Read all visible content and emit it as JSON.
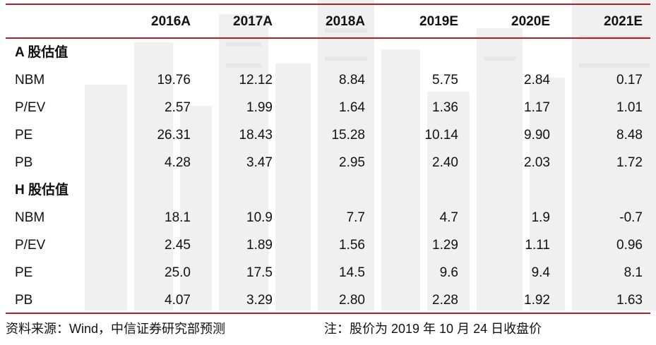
{
  "columns": [
    "2016A",
    "2017A",
    "2018A",
    "2019E",
    "2020E",
    "2021E"
  ],
  "sections": [
    {
      "title": "A 股估值",
      "rows": [
        {
          "label": "NBM",
          "values": [
            "19.76",
            "12.12",
            "8.84",
            "5.75",
            "2.84",
            "0.17"
          ]
        },
        {
          "label": "P/EV",
          "values": [
            "2.57",
            "1.99",
            "1.64",
            "1.36",
            "1.17",
            "1.01"
          ]
        },
        {
          "label": "PE",
          "values": [
            "26.31",
            "18.43",
            "15.28",
            "10.14",
            "9.90",
            "8.48"
          ]
        },
        {
          "label": "PB",
          "values": [
            "4.28",
            "3.47",
            "2.95",
            "2.40",
            "2.03",
            "1.72"
          ]
        }
      ]
    },
    {
      "title": "H 股估值",
      "rows": [
        {
          "label": "NBM",
          "values": [
            "18.1",
            "10.9",
            "7.7",
            "4.7",
            "1.9",
            "-0.7"
          ]
        },
        {
          "label": "P/EV",
          "values": [
            "2.45",
            "1.89",
            "1.56",
            "1.29",
            "1.11",
            "0.96"
          ]
        },
        {
          "label": "PE",
          "values": [
            "25.0",
            "17.5",
            "14.5",
            "9.6",
            "9.4",
            "8.1"
          ]
        },
        {
          "label": "PB",
          "values": [
            "4.07",
            "3.29",
            "2.80",
            "2.28",
            "1.92",
            "1.63"
          ]
        }
      ]
    }
  ],
  "footer": {
    "source": "资料来源：Wind，中信证券研究部预测",
    "note": "注：股价为 2019 年 10 月 24 日收盘价"
  },
  "colors": {
    "rule": "#b41e23",
    "text": "#111111",
    "watermark": "#ececec"
  }
}
